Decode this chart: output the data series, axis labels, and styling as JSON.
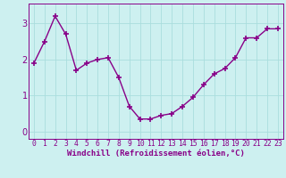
{
  "x": [
    0,
    1,
    2,
    3,
    4,
    5,
    6,
    7,
    8,
    9,
    10,
    11,
    12,
    13,
    14,
    15,
    16,
    17,
    18,
    19,
    20,
    21,
    22,
    23
  ],
  "y": [
    1.9,
    2.5,
    3.2,
    2.7,
    1.7,
    1.9,
    2.0,
    2.05,
    1.5,
    0.7,
    0.35,
    0.35,
    0.45,
    0.5,
    0.7,
    0.95,
    1.3,
    1.6,
    1.75,
    2.05,
    2.6,
    2.6,
    2.85,
    2.85
  ],
  "line_color": "#880088",
  "marker": "+",
  "marker_size": 4,
  "linewidth": 1.0,
  "xlabel": "Windchill (Refroidissement éolien,°C)",
  "xlabel_fontsize": 6.5,
  "xtick_labels": [
    "0",
    "1",
    "2",
    "3",
    "4",
    "5",
    "6",
    "7",
    "8",
    "9",
    "10",
    "11",
    "12",
    "13",
    "14",
    "15",
    "16",
    "17",
    "18",
    "19",
    "20",
    "21",
    "22",
    "23"
  ],
  "ytick_values": [
    0,
    1,
    2,
    3
  ],
  "ylim": [
    -0.2,
    3.55
  ],
  "xlim": [
    -0.5,
    23.5
  ],
  "background_color": "#cdf0f0",
  "grid_color": "#aadddd",
  "tick_fontsize": 5.8,
  "ytick_fontsize": 7.0,
  "markeredgewidth": 1.2
}
